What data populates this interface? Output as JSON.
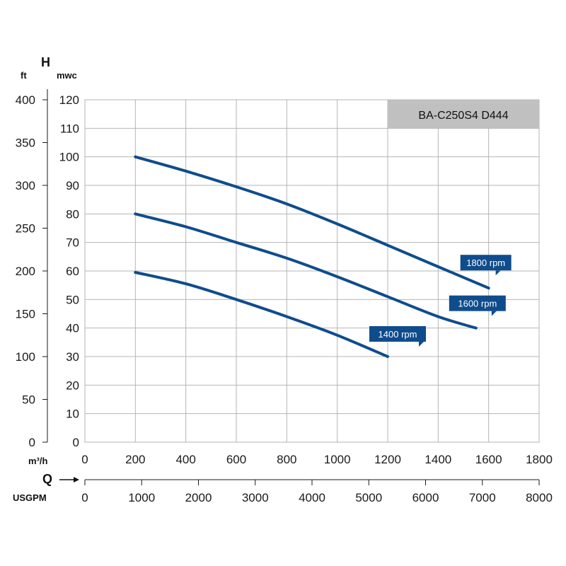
{
  "chart_data": {
    "type": "line",
    "title": "",
    "model_label": "BA-C250S4 D444",
    "colors": {
      "series": "#0f4c8c",
      "label_bg": "#0f4c8c",
      "model_bg": "#c0c0c0",
      "grid": "#b5b5b5"
    },
    "grid": true,
    "xlabel": "Q",
    "x_unit": "m³/h",
    "x_secondary_unit": "USGPM",
    "ylabel": "H",
    "y_unit": "mwc",
    "y_secondary_unit": "ft",
    "xlim": [
      0,
      1800
    ],
    "ylim": [
      0,
      120
    ],
    "x_secondary_lim": [
      0,
      8000
    ],
    "y_secondary_lim": [
      0,
      400
    ],
    "x_ticks": [
      "0",
      "200",
      "400",
      "600",
      "800",
      "1000",
      "1200",
      "1400",
      "1600",
      "1800"
    ],
    "y_ticks": [
      "0",
      "10",
      "20",
      "30",
      "40",
      "50",
      "60",
      "70",
      "80",
      "90",
      "100",
      "110",
      "120"
    ],
    "x_secondary_ticks": [
      "0",
      "1000",
      "2000",
      "3000",
      "4000",
      "5000",
      "6000",
      "7000",
      "8000"
    ],
    "y_secondary_ticks": [
      "0",
      "50",
      "100",
      "150",
      "200",
      "250",
      "300",
      "350",
      "400"
    ],
    "series": [
      {
        "name": "1800 rpm",
        "x": [
          200,
          400,
          600,
          800,
          1000,
          1200,
          1400,
          1600
        ],
        "y": [
          100,
          95,
          89.5,
          83.5,
          76.5,
          69,
          61.5,
          54
        ]
      },
      {
        "name": "1600 rpm",
        "x": [
          200,
          400,
          600,
          800,
          1000,
          1200,
          1400,
          1550
        ],
        "y": [
          80,
          75.5,
          70,
          64.5,
          58,
          51,
          44,
          40
        ]
      },
      {
        "name": "1400 rpm",
        "x": [
          200,
          400,
          600,
          800,
          1000,
          1200
        ],
        "y": [
          59.5,
          55.5,
          50,
          44,
          37.5,
          30
        ]
      }
    ]
  }
}
